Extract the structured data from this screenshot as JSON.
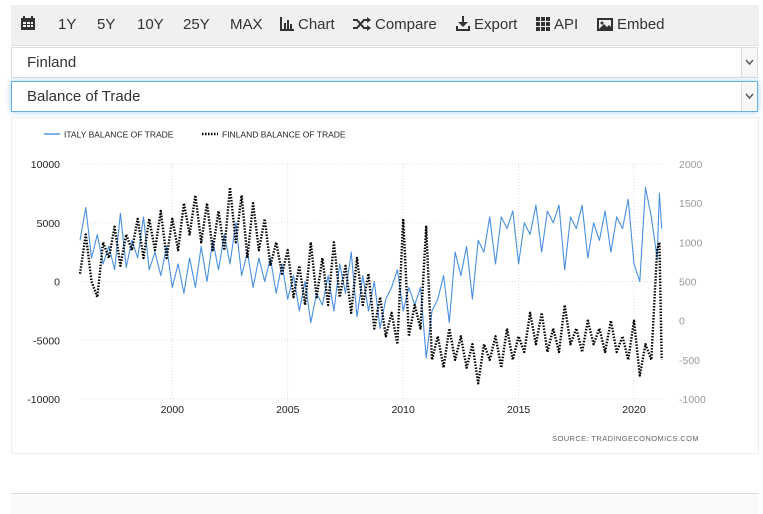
{
  "toolbar": {
    "items": [
      {
        "label": "",
        "icon": "calendar-icon"
      },
      {
        "label": "1Y"
      },
      {
        "label": "5Y"
      },
      {
        "label": "10Y"
      },
      {
        "label": "25Y"
      },
      {
        "label": "MAX"
      },
      {
        "label": "Chart",
        "icon": "bar-chart-icon"
      },
      {
        "label": "Compare",
        "icon": "shuffle-icon"
      },
      {
        "label": "Export",
        "icon": "download-icon"
      },
      {
        "label": "API",
        "icon": "grid-icon"
      },
      {
        "label": "Embed",
        "icon": "image-icon"
      }
    ]
  },
  "country_select": {
    "value": "Finland"
  },
  "indicator_select": {
    "value": "Balance of Trade"
  },
  "chart_data": {
    "type": "line",
    "title": "",
    "source": "SOURCE:  TRADINGECONOMICS.COM",
    "legend_position": "top-left",
    "grid": true,
    "x_range": [
      1996.0,
      2021.3
    ],
    "x_ticks": [
      "2000",
      "2005",
      "2010",
      "2015",
      "2020"
    ],
    "y_left": {
      "range": [
        -10000,
        10000
      ],
      "ticks": [
        "10000",
        "5000",
        "0",
        "-5000",
        "-10000"
      ]
    },
    "y_right": {
      "range": [
        -1000,
        2000
      ],
      "ticks": [
        "2000",
        "1500",
        "1000",
        "500",
        "0",
        "-500",
        "-1000"
      ]
    },
    "series": [
      {
        "name": "ITALY BALANCE OF TRADE",
        "color": "#4a90e2",
        "axis": "left",
        "style": "solid",
        "points": [
          [
            1996.0,
            3500
          ],
          [
            1996.25,
            6300
          ],
          [
            1996.5,
            2000
          ],
          [
            1996.75,
            4000
          ],
          [
            1997.0,
            1500
          ],
          [
            1997.25,
            3000
          ],
          [
            1997.5,
            1000
          ],
          [
            1997.75,
            5800
          ],
          [
            1998.0,
            1200
          ],
          [
            1998.25,
            3500
          ],
          [
            1998.5,
            2000
          ],
          [
            1998.75,
            5500
          ],
          [
            1999.0,
            1000
          ],
          [
            1999.25,
            2500
          ],
          [
            1999.5,
            500
          ],
          [
            1999.75,
            3000
          ],
          [
            2000.0,
            -500
          ],
          [
            2000.25,
            1500
          ],
          [
            2000.5,
            -1000
          ],
          [
            2000.75,
            2000
          ],
          [
            2001.0,
            -500
          ],
          [
            2001.25,
            3000
          ],
          [
            2001.5,
            0
          ],
          [
            2001.75,
            3500
          ],
          [
            2002.0,
            1000
          ],
          [
            2002.25,
            4000
          ],
          [
            2002.5,
            1500
          ],
          [
            2002.75,
            5000
          ],
          [
            2003.0,
            500
          ],
          [
            2003.25,
            2500
          ],
          [
            2003.5,
            -500
          ],
          [
            2003.75,
            2000
          ],
          [
            2004.0,
            0
          ],
          [
            2004.25,
            2000
          ],
          [
            2004.5,
            -1000
          ],
          [
            2004.75,
            1500
          ],
          [
            2005.0,
            -1500
          ],
          [
            2005.25,
            500
          ],
          [
            2005.5,
            -2500
          ],
          [
            2005.75,
            0
          ],
          [
            2006.0,
            -3500
          ],
          [
            2006.25,
            -1000
          ],
          [
            2006.5,
            -2000
          ],
          [
            2006.75,
            500
          ],
          [
            2007.0,
            -2500
          ],
          [
            2007.25,
            1500
          ],
          [
            2007.5,
            -1000
          ],
          [
            2007.75,
            2500
          ],
          [
            2008.0,
            -3000
          ],
          [
            2008.25,
            500
          ],
          [
            2008.5,
            -2500
          ],
          [
            2008.75,
            0
          ],
          [
            2009.0,
            -4000
          ],
          [
            2009.25,
            -1500
          ],
          [
            2009.5,
            -500
          ],
          [
            2009.75,
            1000
          ],
          [
            2010.0,
            -2500
          ],
          [
            2010.25,
            -500
          ],
          [
            2010.5,
            -2000
          ],
          [
            2010.75,
            -500
          ],
          [
            2011.0,
            -6500
          ],
          [
            2011.25,
            -2500
          ],
          [
            2011.5,
            -1500
          ],
          [
            2011.75,
            500
          ],
          [
            2012.0,
            -3500
          ],
          [
            2012.25,
            2500
          ],
          [
            2012.5,
            500
          ],
          [
            2012.75,
            3000
          ],
          [
            2013.0,
            -1500
          ],
          [
            2013.25,
            3500
          ],
          [
            2013.5,
            2500
          ],
          [
            2013.75,
            5500
          ],
          [
            2014.0,
            1500
          ],
          [
            2014.25,
            5500
          ],
          [
            2014.5,
            4500
          ],
          [
            2014.75,
            6000
          ],
          [
            2015.0,
            1500
          ],
          [
            2015.25,
            5000
          ],
          [
            2015.5,
            4000
          ],
          [
            2015.75,
            6500
          ],
          [
            2016.0,
            2500
          ],
          [
            2016.25,
            6000
          ],
          [
            2016.5,
            5000
          ],
          [
            2016.75,
            6500
          ],
          [
            2017.0,
            1000
          ],
          [
            2017.25,
            5500
          ],
          [
            2017.5,
            4500
          ],
          [
            2017.75,
            6500
          ],
          [
            2018.0,
            2000
          ],
          [
            2018.25,
            5000
          ],
          [
            2018.5,
            3500
          ],
          [
            2018.75,
            6000
          ],
          [
            2019.0,
            2500
          ],
          [
            2019.25,
            5500
          ],
          [
            2019.5,
            4500
          ],
          [
            2019.75,
            7000
          ],
          [
            2020.0,
            1500
          ],
          [
            2020.25,
            0
          ],
          [
            2020.5,
            8000
          ],
          [
            2020.75,
            5500
          ],
          [
            2021.0,
            2000
          ],
          [
            2021.1,
            7500
          ],
          [
            2021.2,
            4500
          ]
        ]
      },
      {
        "name": "FINLAND BALANCE OF TRADE",
        "color": "#000000",
        "axis": "right",
        "style": "dotted",
        "points": [
          [
            1996.0,
            600
          ],
          [
            1996.25,
            1100
          ],
          [
            1996.5,
            500
          ],
          [
            1996.75,
            300
          ],
          [
            1997.0,
            1000
          ],
          [
            1997.25,
            800
          ],
          [
            1997.5,
            1200
          ],
          [
            1997.75,
            700
          ],
          [
            1998.0,
            1100
          ],
          [
            1998.25,
            900
          ],
          [
            1998.5,
            1300
          ],
          [
            1998.75,
            800
          ],
          [
            1999.0,
            1300
          ],
          [
            1999.25,
            900
          ],
          [
            1999.5,
            1400
          ],
          [
            1999.75,
            800
          ],
          [
            2000.0,
            1300
          ],
          [
            2000.25,
            900
          ],
          [
            2000.5,
            1500
          ],
          [
            2000.75,
            1100
          ],
          [
            2001.0,
            1600
          ],
          [
            2001.25,
            1000
          ],
          [
            2001.5,
            1500
          ],
          [
            2001.75,
            900
          ],
          [
            2002.0,
            1400
          ],
          [
            2002.25,
            900
          ],
          [
            2002.5,
            1700
          ],
          [
            2002.75,
            1000
          ],
          [
            2003.0,
            1600
          ],
          [
            2003.25,
            800
          ],
          [
            2003.5,
            1500
          ],
          [
            2003.75,
            900
          ],
          [
            2004.0,
            1300
          ],
          [
            2004.25,
            700
          ],
          [
            2004.5,
            1000
          ],
          [
            2004.75,
            600
          ],
          [
            2005.0,
            900
          ],
          [
            2005.25,
            300
          ],
          [
            2005.5,
            700
          ],
          [
            2005.75,
            200
          ],
          [
            2006.0,
            1000
          ],
          [
            2006.25,
            300
          ],
          [
            2006.5,
            800
          ],
          [
            2006.75,
            200
          ],
          [
            2007.0,
            1000
          ],
          [
            2007.25,
            300
          ],
          [
            2007.5,
            700
          ],
          [
            2007.75,
            100
          ],
          [
            2008.0,
            800
          ],
          [
            2008.25,
            200
          ],
          [
            2008.5,
            600
          ],
          [
            2008.75,
            -100
          ],
          [
            2009.0,
            300
          ],
          [
            2009.25,
            -200
          ],
          [
            2009.5,
            100
          ],
          [
            2009.75,
            -300
          ],
          [
            2010.0,
            1300
          ],
          [
            2010.25,
            -200
          ],
          [
            2010.5,
            200
          ],
          [
            2010.75,
            -100
          ],
          [
            2011.0,
            1200
          ],
          [
            2011.25,
            -500
          ],
          [
            2011.5,
            -200
          ],
          [
            2011.75,
            -600
          ],
          [
            2012.0,
            -100
          ],
          [
            2012.25,
            -500
          ],
          [
            2012.5,
            -200
          ],
          [
            2012.75,
            -600
          ],
          [
            2013.0,
            -300
          ],
          [
            2013.25,
            -800
          ],
          [
            2013.5,
            -300
          ],
          [
            2013.75,
            -500
          ],
          [
            2014.0,
            -200
          ],
          [
            2014.25,
            -600
          ],
          [
            2014.5,
            -100
          ],
          [
            2014.75,
            -500
          ],
          [
            2015.0,
            -200
          ],
          [
            2015.25,
            -400
          ],
          [
            2015.5,
            100
          ],
          [
            2015.75,
            -300
          ],
          [
            2016.0,
            100
          ],
          [
            2016.25,
            -400
          ],
          [
            2016.5,
            -100
          ],
          [
            2016.75,
            -400
          ],
          [
            2017.0,
            200
          ],
          [
            2017.25,
            -300
          ],
          [
            2017.5,
            -100
          ],
          [
            2017.75,
            -400
          ],
          [
            2018.0,
            0
          ],
          [
            2018.25,
            -300
          ],
          [
            2018.5,
            -100
          ],
          [
            2018.75,
            -400
          ],
          [
            2019.0,
            0
          ],
          [
            2019.25,
            -400
          ],
          [
            2019.5,
            -200
          ],
          [
            2019.75,
            -500
          ],
          [
            2020.0,
            0
          ],
          [
            2020.25,
            -700
          ],
          [
            2020.5,
            -300
          ],
          [
            2020.75,
            -500
          ],
          [
            2021.0,
            900
          ],
          [
            2021.1,
            1000
          ],
          [
            2021.2,
            -500
          ]
        ]
      }
    ]
  }
}
